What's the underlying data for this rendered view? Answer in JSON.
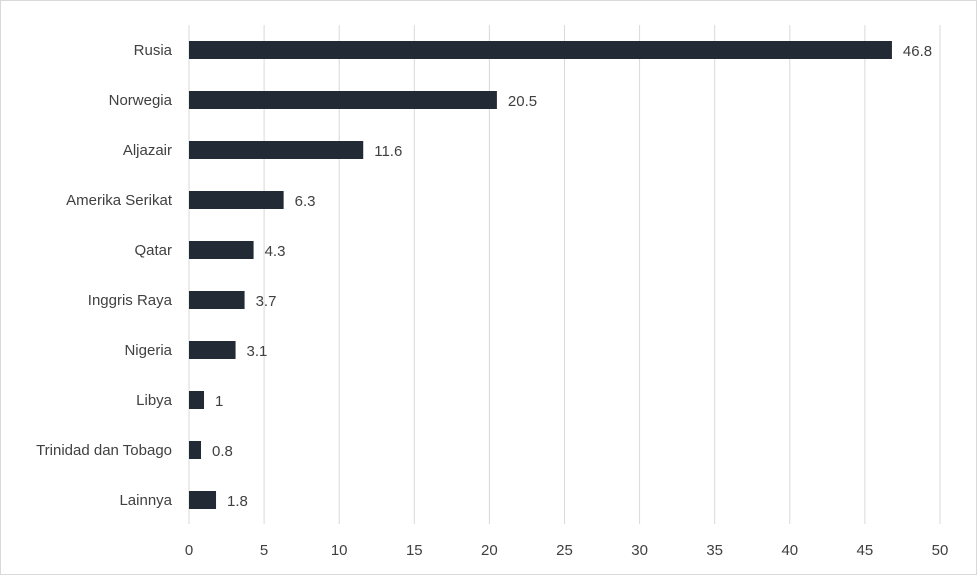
{
  "chart_data": {
    "type": "bar",
    "orientation": "horizontal",
    "categories": [
      "Rusia",
      "Norwegia",
      "Aljazair",
      "Amerika Serikat",
      "Qatar",
      "Inggris Raya",
      "Nigeria",
      "Libya",
      "Trinidad dan Tobago",
      "Lainnya"
    ],
    "values": [
      46.8,
      20.5,
      11.6,
      6.3,
      4.3,
      3.7,
      3.1,
      1,
      0.8,
      1.8
    ],
    "value_labels": [
      "46.8",
      "20.5",
      "11.6",
      "6.3",
      "4.3",
      "3.7",
      "3.1",
      "1",
      "0.8",
      "1.8"
    ],
    "xlim": [
      0,
      50
    ],
    "x_ticks": [
      0,
      5,
      10,
      15,
      20,
      25,
      30,
      35,
      40,
      45,
      50
    ],
    "grid": "vertical",
    "legend": "none",
    "colors": {
      "bar": "#222a35",
      "grid": "#d9d9d9",
      "text": "#404040"
    }
  }
}
